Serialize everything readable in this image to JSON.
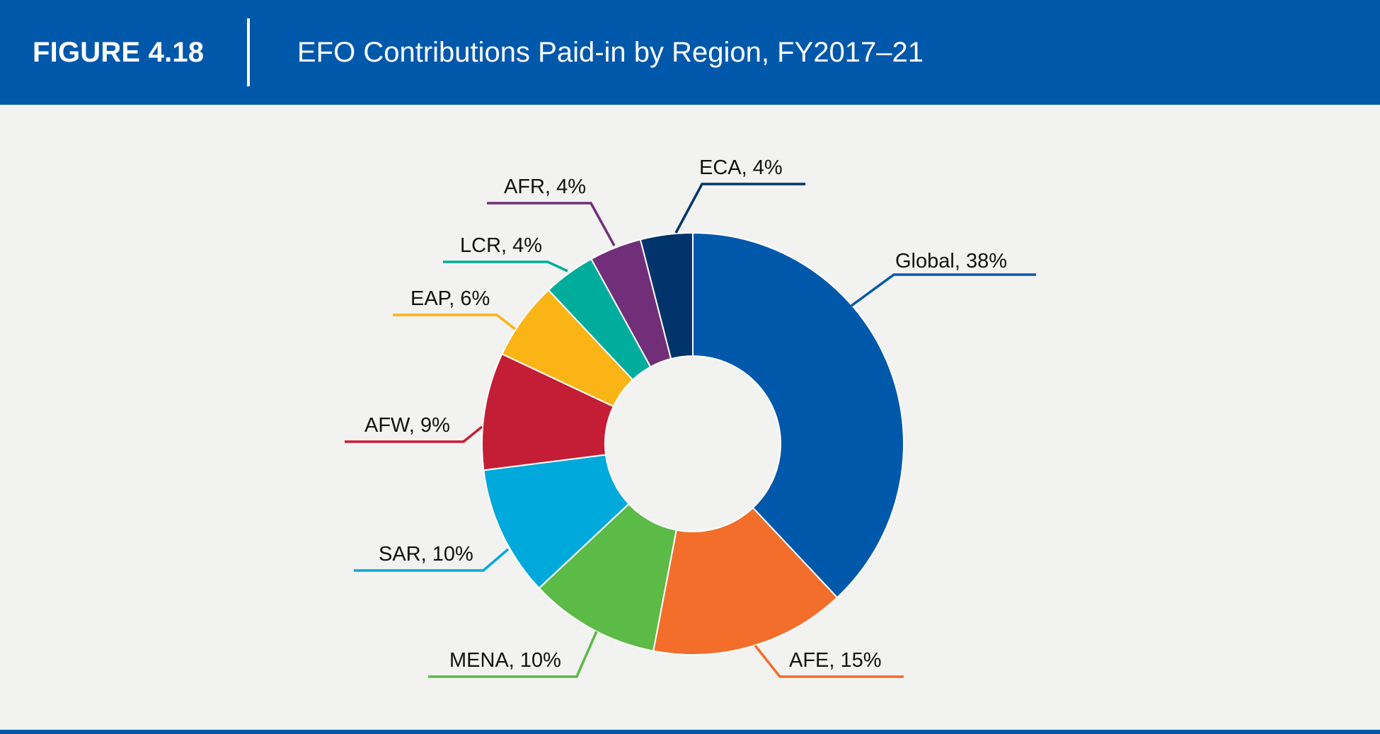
{
  "header": {
    "figure_label": "FIGURE 4.18",
    "title": "EFO Contributions Paid-in by Region, FY2017–21"
  },
  "colors": {
    "header_bg": "#0058ab",
    "page_bg": "#f2f2f1"
  },
  "chart_data": {
    "type": "pie",
    "variant": "donut",
    "title": "EFO Contributions Paid-in by Region, FY2017–21",
    "slices": [
      {
        "name": "Global",
        "value": 38,
        "label": "Global, 38%",
        "color": "#0058ab"
      },
      {
        "name": "AFE",
        "value": 15,
        "label": "AFE, 15%",
        "color": "#f26e2a"
      },
      {
        "name": "MENA",
        "value": 10,
        "label": "MENA, 10%",
        "color": "#5cba47"
      },
      {
        "name": "SAR",
        "value": 10,
        "label": "SAR, 10%",
        "color": "#00a9db"
      },
      {
        "name": "AFW",
        "value": 9,
        "label": "AFW, 9%",
        "color": "#c41e36"
      },
      {
        "name": "EAP",
        "value": 6,
        "label": "EAP, 6%",
        "color": "#fbb416"
      },
      {
        "name": "LCR",
        "value": 4,
        "label": "LCR, 4%",
        "color": "#00ad9c"
      },
      {
        "name": "AFR",
        "value": 4,
        "label": "AFR, 4%",
        "color": "#722f79"
      },
      {
        "name": "ECA",
        "value": 4,
        "label": "ECA, 4%",
        "color": "#00346a"
      }
    ]
  }
}
